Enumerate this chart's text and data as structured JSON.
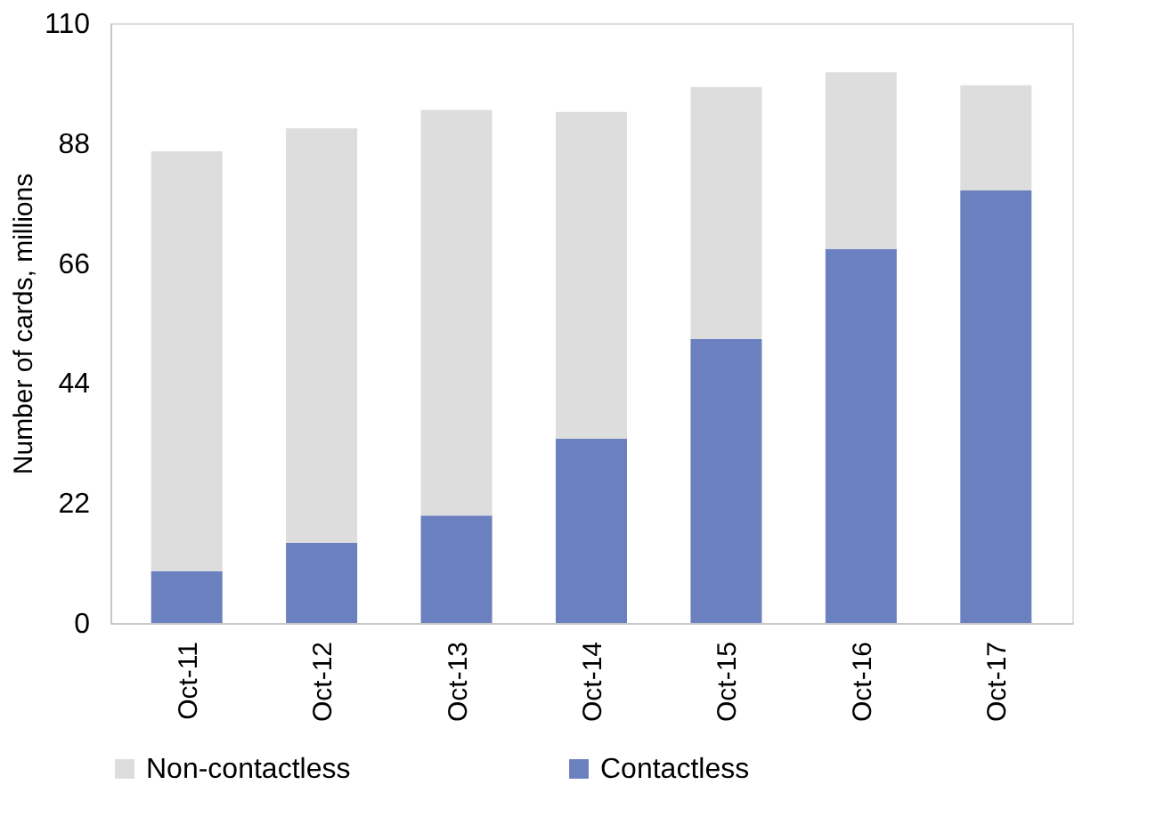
{
  "chart_data": {
    "type": "bar",
    "stacked": true,
    "ylabel": "Number of cards, millions",
    "categories": [
      "Oct-11",
      "Oct-12",
      "Oct-13",
      "Oct-14",
      "Oct-15",
      "Oct-16",
      "Oct-17"
    ],
    "series": [
      {
        "name": "Contactless",
        "color": "#6b80bf",
        "values": [
          9.5,
          14.7,
          19.7,
          33.8,
          52.1,
          68.6,
          79.3
        ]
      },
      {
        "name": "Non-contactless",
        "color": "#dddddd",
        "values": [
          77,
          76,
          74.4,
          59.9,
          46.2,
          32.4,
          19.3
        ]
      }
    ],
    "ylim": [
      0,
      110
    ],
    "yticks": [
      0,
      22,
      44,
      66,
      88,
      110
    ],
    "grid": false,
    "legend": "bottom"
  }
}
